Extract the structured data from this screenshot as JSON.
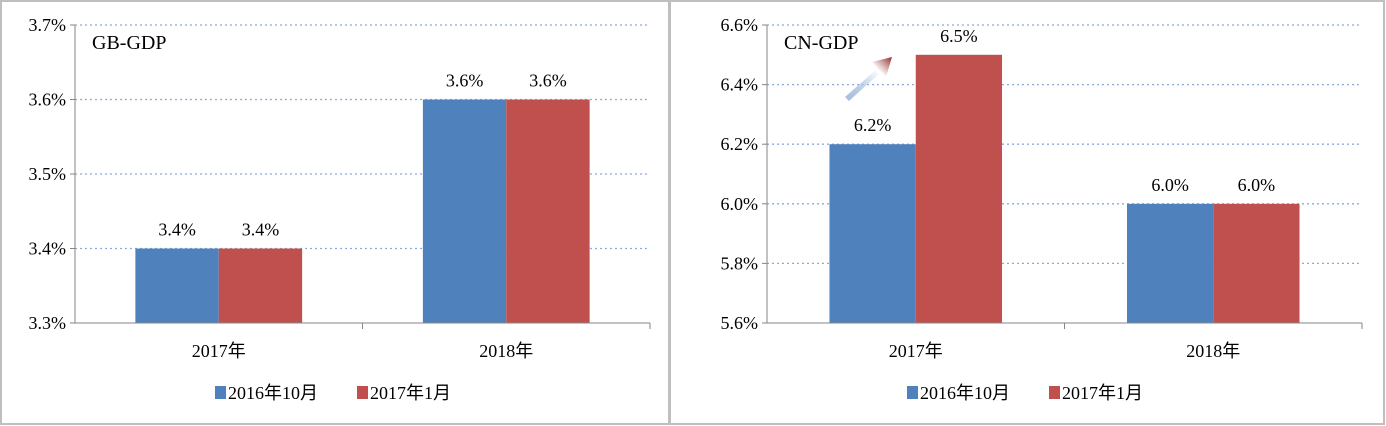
{
  "chart_data": [
    {
      "type": "bar",
      "title": "GB-GDP",
      "categories": [
        "2017年",
        "2018年"
      ],
      "series": [
        {
          "name": "2016年10月",
          "values": [
            3.4,
            3.6
          ],
          "color": "#4F81BD"
        },
        {
          "name": "2017年1月",
          "values": [
            3.4,
            3.6
          ],
          "color": "#C0504D"
        }
      ],
      "data_labels": [
        [
          "3.4%",
          "3.6%"
        ],
        [
          "3.4%",
          "3.6%"
        ]
      ],
      "ylim": [
        3.3,
        3.7
      ],
      "yticks": [
        3.3,
        3.4,
        3.5,
        3.6,
        3.7
      ],
      "ytick_labels": [
        "3.3%",
        "3.4%",
        "3.5%",
        "3.6%",
        "3.7%"
      ],
      "xlabel": "",
      "ylabel": "",
      "grid": true,
      "legend": "bottom"
    },
    {
      "type": "bar",
      "title": "CN-GDP",
      "categories": [
        "2017年",
        "2018年"
      ],
      "series": [
        {
          "name": "2016年10月",
          "values": [
            6.2,
            6.0
          ],
          "color": "#4F81BD"
        },
        {
          "name": "2017年1月",
          "values": [
            6.5,
            6.0
          ],
          "color": "#C0504D"
        }
      ],
      "data_labels": [
        [
          "6.2%",
          "6.0%"
        ],
        [
          "6.5%",
          "6.0%"
        ]
      ],
      "ylim": [
        5.6,
        6.6
      ],
      "yticks": [
        5.6,
        5.8,
        6.0,
        6.2,
        6.4,
        6.6
      ],
      "ytick_labels": [
        "5.6%",
        "5.8%",
        "6.0%",
        "6.2%",
        "6.4%",
        "6.6%"
      ],
      "xlabel": "",
      "ylabel": "",
      "grid": true,
      "legend": "bottom",
      "annotation": "arrow-up-icon"
    }
  ]
}
